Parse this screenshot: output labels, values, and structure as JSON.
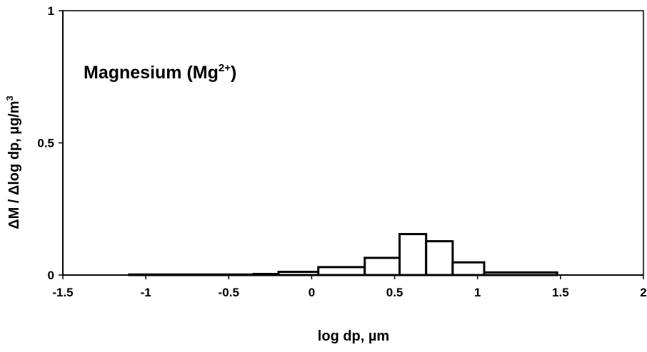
{
  "chart_data": {
    "type": "bar",
    "title": "",
    "annotation": {
      "main": "Magnesium (Mg",
      "superscript": "2+",
      "close": ")"
    },
    "xlabel": "log dp, µm",
    "ylabel": {
      "main": "ΔM / Δlog dp, µg/m",
      "superscript": "3"
    },
    "xlim": [
      -1.5,
      2
    ],
    "ylim": [
      0,
      1
    ],
    "xticks": [
      -1.5,
      -1,
      -0.5,
      0,
      0.5,
      1,
      1.5,
      2
    ],
    "xtick_labels": [
      "-1.5",
      "-1",
      "-0.5",
      "0",
      "0.5",
      "1",
      "1.5",
      "2"
    ],
    "yticks": [
      0,
      0.5,
      1
    ],
    "ytick_labels": [
      "0",
      "0.5",
      "1"
    ],
    "grid": false,
    "series": [
      {
        "bins": [
          {
            "x0": -1.1,
            "x1": -0.35,
            "value": 0.002
          },
          {
            "x0": -0.35,
            "x1": -0.2,
            "value": 0.004
          },
          {
            "x0": -0.2,
            "x1": 0.04,
            "value": 0.012
          },
          {
            "x0": 0.04,
            "x1": 0.32,
            "value": 0.03
          },
          {
            "x0": 0.32,
            "x1": 0.53,
            "value": 0.065
          },
          {
            "x0": 0.53,
            "x1": 0.69,
            "value": 0.155
          },
          {
            "x0": 0.69,
            "x1": 0.85,
            "value": 0.128
          },
          {
            "x0": 0.85,
            "x1": 1.04,
            "value": 0.048
          },
          {
            "x0": 1.04,
            "x1": 1.48,
            "value": 0.01
          }
        ]
      }
    ]
  }
}
